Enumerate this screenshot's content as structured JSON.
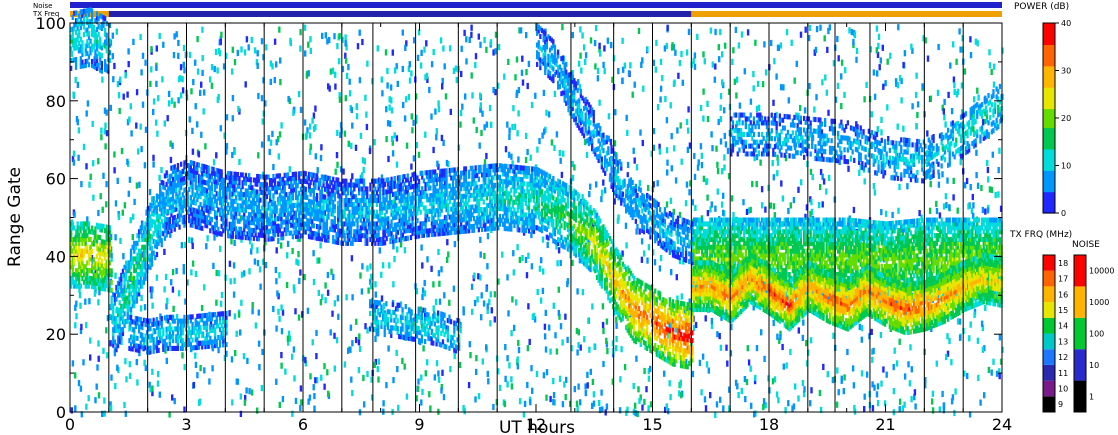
{
  "chart_data": {
    "type": "heatmap",
    "xlabel": "UT hours",
    "ylabel": "Range Gate",
    "xlim": [
      0,
      24
    ],
    "ylim": [
      0,
      100
    ],
    "x_ticks": [
      0,
      3,
      6,
      9,
      12,
      15,
      18,
      21,
      24
    ],
    "y_ticks": [
      0,
      20,
      40,
      60,
      80,
      100
    ],
    "grid": false,
    "scan_boundaries_ut": [
      1.0,
      2.0,
      3.0,
      4.0,
      5.0,
      6.0,
      7.0,
      7.8,
      8.9,
      10.0,
      11.0,
      12.9,
      14.0,
      15.0,
      16.0,
      17.0,
      18.0,
      19.0,
      19.7,
      20.6,
      22.0,
      23.0
    ],
    "header_bars": {
      "noise_label": "Noise",
      "txfreq_label": "TX Freq",
      "noise_color": "#2222cc",
      "txfreq_segments": [
        {
          "from": 0,
          "to": 1,
          "color": "#f0a000"
        },
        {
          "from": 1,
          "to": 16,
          "color": "#2222aa"
        },
        {
          "from": 16,
          "to": 24,
          "color": "#f0a000"
        }
      ]
    },
    "power_scale": {
      "title": "POWER (dB)",
      "ticks": [
        0,
        10,
        20,
        30,
        40
      ],
      "range": [
        0,
        40
      ],
      "colors": [
        "#1e28ff",
        "#0096ff",
        "#00dcdc",
        "#00c850",
        "#64dc00",
        "#e6e600",
        "#ffb400",
        "#ff6400",
        "#ff0000"
      ]
    },
    "txfreq_scale": {
      "title": "TX FRQ (MHz)",
      "ticks": [
        9,
        10,
        11,
        12,
        13,
        14,
        15,
        16,
        17,
        18
      ],
      "colors": [
        "#000000",
        "#7a1a8a",
        "#2a2ab0",
        "#1e78ff",
        "#00c8c8",
        "#00c832",
        "#e6e600",
        "#ffb400",
        "#ff6400",
        "#ff0000"
      ]
    },
    "noise_scale": {
      "title": "NOISE",
      "ticks": [
        "1",
        "10",
        "100",
        "1000",
        "10000"
      ],
      "colors": [
        "#000000",
        "#2a2acc",
        "#00c832",
        "#ffb400",
        "#ff0000"
      ]
    },
    "bands": [
      {
        "name": "band-a",
        "points": [
          [
            0,
            41
          ],
          [
            0.5,
            41
          ],
          [
            1.0,
            40
          ],
          [
            1.1,
            23
          ],
          [
            1.5,
            33
          ],
          [
            2.0,
            45
          ],
          [
            2.5,
            55
          ],
          [
            3.0,
            57
          ],
          [
            4.0,
            54
          ],
          [
            5.0,
            53
          ],
          [
            6.0,
            54
          ],
          [
            7.0,
            52
          ],
          [
            8.0,
            52
          ],
          [
            9.0,
            54
          ],
          [
            10.0,
            55
          ],
          [
            11.0,
            56
          ],
          [
            12.0,
            55
          ],
          [
            12.9,
            50
          ],
          [
            13.5,
            44
          ],
          [
            14.0,
            35
          ],
          [
            14.5,
            27
          ],
          [
            15.0,
            24
          ],
          [
            15.5,
            21
          ],
          [
            16.0,
            20
          ]
        ],
        "width": 8,
        "power": [
          25,
          26,
          25,
          10,
          16,
          14,
          9,
          8,
          8,
          8,
          8,
          8,
          8,
          9,
          10,
          12,
          13,
          18,
          24,
          28,
          32,
          34,
          36,
          38
        ],
        "density": 0.65
      },
      {
        "name": "band-b",
        "points": [
          [
            16.0,
            40
          ],
          [
            17.0,
            40
          ],
          [
            18.0,
            40
          ],
          [
            19.0,
            40
          ],
          [
            20.0,
            40
          ],
          [
            21.0,
            39
          ],
          [
            22.0,
            40
          ],
          [
            23.0,
            40
          ],
          [
            24.0,
            40
          ]
        ],
        "width": 10,
        "power": [
          20,
          20,
          20,
          19,
          20,
          20,
          20,
          21,
          22
        ],
        "density": 0.8
      },
      {
        "name": "band-c",
        "points": [
          [
            16.0,
            33
          ],
          [
            16.5,
            33
          ],
          [
            17.0,
            30
          ],
          [
            17.5,
            35
          ],
          [
            18.0,
            32
          ],
          [
            18.5,
            28
          ],
          [
            19.0,
            33
          ],
          [
            19.5,
            30
          ],
          [
            20.0,
            28
          ],
          [
            20.5,
            32
          ],
          [
            21.0,
            29
          ],
          [
            21.5,
            27
          ],
          [
            22.0,
            28
          ],
          [
            22.5,
            30
          ],
          [
            23.0,
            33
          ],
          [
            23.5,
            35
          ],
          [
            24.0,
            34
          ]
        ],
        "width": 6,
        "power": [
          30,
          31,
          32,
          30,
          33,
          34,
          30,
          33,
          33,
          31,
          33,
          34,
          33,
          31,
          29,
          27,
          27
        ],
        "density": 0.85
      },
      {
        "name": "band-d",
        "points": [
          [
            12.0,
            95
          ],
          [
            12.5,
            90
          ],
          [
            13.0,
            80
          ],
          [
            13.5,
            72
          ],
          [
            14.0,
            62
          ],
          [
            14.5,
            54
          ],
          [
            15.0,
            50
          ],
          [
            15.5,
            46
          ],
          [
            16.0,
            44
          ]
        ],
        "width": 5,
        "power": [
          8,
          8,
          9,
          9,
          9,
          9,
          9,
          9,
          9
        ],
        "density": 0.55
      },
      {
        "name": "band-e",
        "points": [
          [
            1.5,
            21
          ],
          [
            2.0,
            20
          ],
          [
            2.5,
            21
          ],
          [
            3.0,
            21
          ],
          [
            4.0,
            22
          ]
        ],
        "width": 4,
        "power": [
          10,
          10,
          10,
          11,
          10
        ],
        "density": 0.55
      },
      {
        "name": "band-f",
        "points": [
          [
            7.7,
            25
          ],
          [
            8.5,
            24
          ],
          [
            9.5,
            22
          ],
          [
            10.0,
            20
          ]
        ],
        "width": 4,
        "power": [
          11,
          11,
          11,
          11
        ],
        "density": 0.5
      },
      {
        "name": "band-g",
        "points": [
          [
            0,
            96
          ],
          [
            0.5,
            97
          ],
          [
            1.0,
            94
          ]
        ],
        "width": 7,
        "power": [
          12,
          11,
          11
        ],
        "density": 0.5
      },
      {
        "name": "band-h",
        "points": [
          [
            17.0,
            72
          ],
          [
            18.0,
            72
          ],
          [
            19.0,
            71
          ],
          [
            20.0,
            70
          ],
          [
            21.0,
            66
          ],
          [
            22.0,
            65
          ],
          [
            23.0,
            72
          ],
          [
            23.5,
            76
          ],
          [
            24.0,
            80
          ]
        ],
        "width": 5,
        "power": [
          9,
          9,
          9,
          9,
          10,
          10,
          12,
          14,
          12
        ],
        "density": 0.4
      }
    ]
  }
}
